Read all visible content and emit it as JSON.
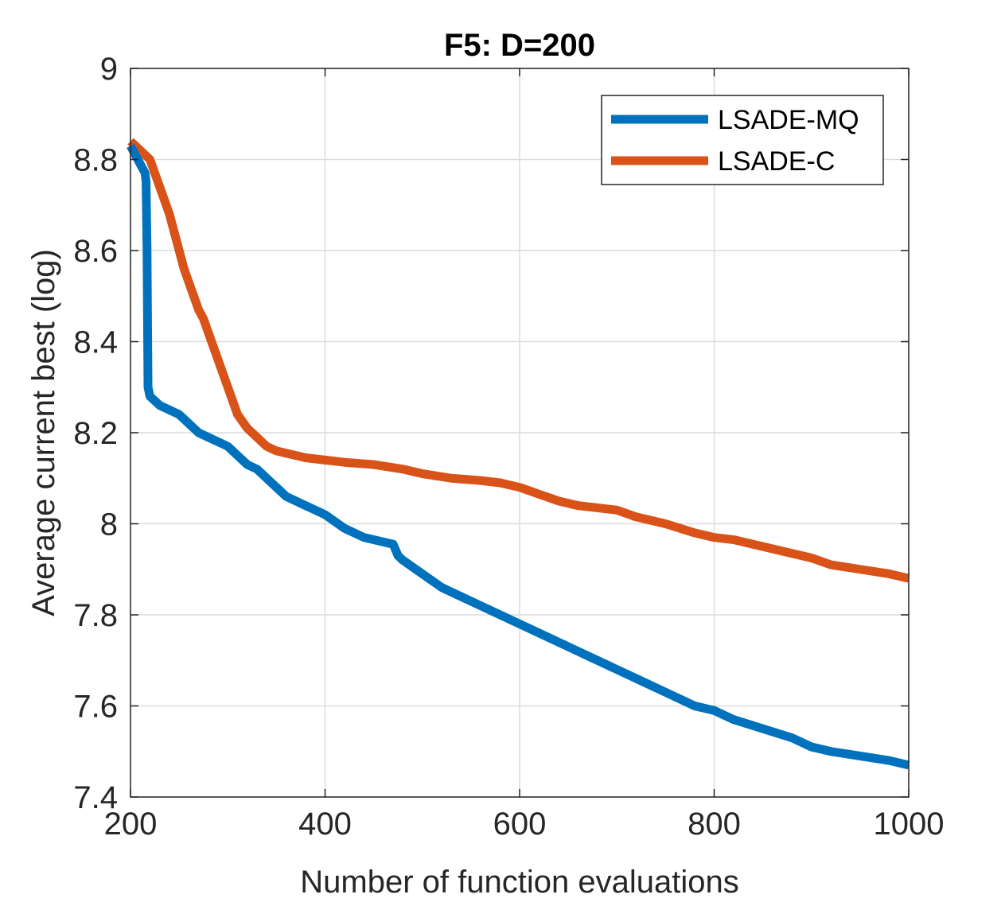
{
  "chart_data": {
    "type": "line",
    "title": "F5: D=200",
    "xlabel": "Number of function evaluations",
    "ylabel": "Average current best (log)",
    "xlim": [
      200,
      1000
    ],
    "ylim": [
      7.4,
      9
    ],
    "xticks": [
      200,
      400,
      600,
      800,
      1000
    ],
    "xtick_labels": [
      "200",
      "400",
      "600",
      "800",
      "1000"
    ],
    "yticks": [
      7.4,
      7.6,
      7.8,
      8,
      8.2,
      8.4,
      8.6,
      8.8,
      9
    ],
    "ytick_labels": [
      "7.4",
      "7.6",
      "7.8",
      "8",
      "8.2",
      "8.4",
      "8.6",
      "8.8",
      "9"
    ],
    "grid": true,
    "legend_position": "top-right",
    "series": [
      {
        "name": "LSADE-MQ",
        "color": "#0072BD",
        "x": [
          200,
          205,
          210,
          215,
          216,
          217,
          218,
          220,
          225,
          230,
          240,
          250,
          260,
          270,
          280,
          290,
          300,
          310,
          320,
          330,
          340,
          350,
          360,
          370,
          380,
          390,
          400,
          420,
          440,
          460,
          470,
          475,
          480,
          500,
          520,
          540,
          560,
          580,
          600,
          620,
          650,
          680,
          700,
          720,
          750,
          780,
          800,
          820,
          850,
          880,
          900,
          920,
          950,
          980,
          1000
        ],
        "values": [
          8.83,
          8.81,
          8.79,
          8.77,
          8.75,
          8.6,
          8.3,
          8.28,
          8.27,
          8.26,
          8.25,
          8.24,
          8.22,
          8.2,
          8.19,
          8.18,
          8.17,
          8.15,
          8.13,
          8.12,
          8.1,
          8.08,
          8.06,
          8.05,
          8.04,
          8.03,
          8.02,
          7.99,
          7.97,
          7.96,
          7.955,
          7.93,
          7.92,
          7.89,
          7.86,
          7.84,
          7.82,
          7.8,
          7.78,
          7.76,
          7.73,
          7.7,
          7.68,
          7.66,
          7.63,
          7.6,
          7.59,
          7.57,
          7.55,
          7.53,
          7.51,
          7.5,
          7.49,
          7.48,
          7.47
        ]
      },
      {
        "name": "LSADE-C",
        "color": "#D95319",
        "x": [
          200,
          205,
          210,
          215,
          220,
          225,
          230,
          235,
          240,
          245,
          250,
          255,
          260,
          265,
          270,
          275,
          280,
          285,
          290,
          295,
          300,
          305,
          310,
          320,
          330,
          340,
          350,
          360,
          380,
          400,
          420,
          450,
          480,
          500,
          530,
          560,
          580,
          600,
          620,
          640,
          660,
          680,
          700,
          720,
          750,
          780,
          800,
          820,
          850,
          880,
          900,
          920,
          950,
          980,
          1000
        ],
        "values": [
          8.84,
          8.83,
          8.82,
          8.81,
          8.8,
          8.77,
          8.74,
          8.71,
          8.68,
          8.64,
          8.6,
          8.56,
          8.53,
          8.5,
          8.47,
          8.45,
          8.42,
          8.39,
          8.36,
          8.33,
          8.3,
          8.27,
          8.24,
          8.21,
          8.19,
          8.17,
          8.16,
          8.155,
          8.145,
          8.14,
          8.135,
          8.13,
          8.12,
          8.11,
          8.1,
          8.095,
          8.09,
          8.08,
          8.065,
          8.05,
          8.04,
          8.035,
          8.03,
          8.015,
          8.0,
          7.98,
          7.97,
          7.965,
          7.95,
          7.935,
          7.925,
          7.91,
          7.9,
          7.89,
          7.88
        ]
      }
    ]
  }
}
